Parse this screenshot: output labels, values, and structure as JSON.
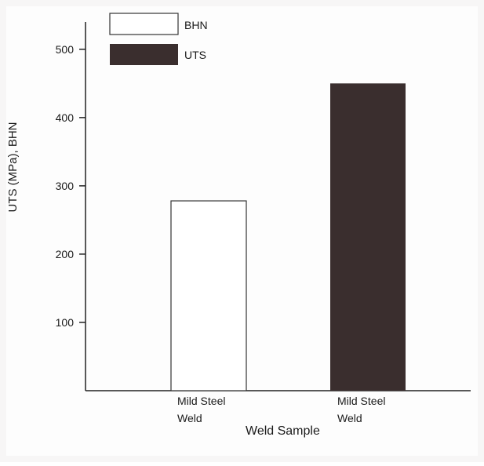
{
  "chart_data": {
    "type": "bar",
    "xlabel": "Weld Sample",
    "ylabel": "UTS (MPa), BHN",
    "ylim": [
      0,
      540
    ],
    "yticks": [
      100,
      200,
      300,
      400,
      500
    ],
    "grid": false,
    "legend_position": "top-left",
    "categories": [
      {
        "line1": "Mild Steel",
        "line2": "Weld"
      },
      {
        "line1": "Mild Steel",
        "line2": "Weld"
      }
    ],
    "series": [
      {
        "name": "BHN",
        "values": [
          278,
          null
        ],
        "color": "#ffffff"
      },
      {
        "name": "UTS",
        "values": [
          null,
          450
        ],
        "color": "#3a2e2e"
      }
    ]
  }
}
